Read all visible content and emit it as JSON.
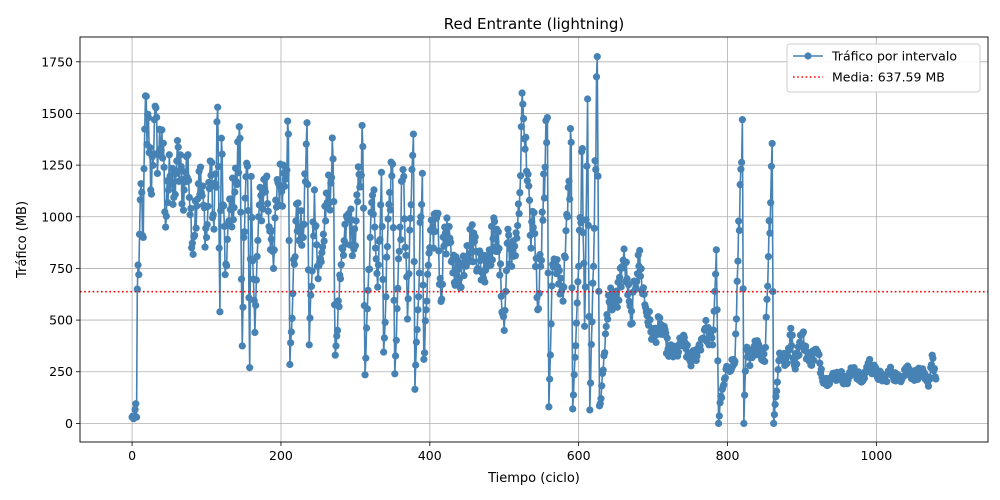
{
  "chart_data": {
    "type": "line",
    "title": "Red Entrante (lightning)",
    "xlabel": "Tiempo (ciclo)",
    "ylabel": "Tráfico (MB)",
    "xlim": [
      -70,
      1150
    ],
    "ylim": [
      -90,
      1870
    ],
    "x_ticks": [
      0,
      200,
      400,
      600,
      800,
      1000
    ],
    "y_ticks": [
      0,
      250,
      500,
      750,
      1000,
      1250,
      1500,
      1750
    ],
    "grid": true,
    "legend_position": "top-right",
    "series": [
      {
        "name": "Tráfico por intervalo",
        "color": "#4682b4",
        "marker": "circle",
        "anchors": [
          [
            0,
            30
          ],
          [
            3,
            30
          ],
          [
            5,
            95
          ],
          [
            6,
            30
          ],
          [
            7,
            650
          ],
          [
            9,
            720
          ],
          [
            10,
            915
          ],
          [
            12,
            1160
          ],
          [
            15,
            900
          ],
          [
            18,
            1585
          ],
          [
            20,
            1350
          ],
          [
            22,
            1480
          ],
          [
            25,
            1130
          ],
          [
            30,
            1470
          ],
          [
            35,
            1300
          ],
          [
            40,
            1420
          ],
          [
            45,
            950
          ],
          [
            50,
            1300
          ],
          [
            55,
            1060
          ],
          [
            60,
            1270
          ],
          [
            70,
            1130
          ],
          [
            75,
            1300
          ],
          [
            80,
            850
          ],
          [
            90,
            1220
          ],
          [
            100,
            900
          ],
          [
            105,
            1270
          ],
          [
            110,
            940
          ],
          [
            115,
            1530
          ],
          [
            118,
            540
          ],
          [
            120,
            1380
          ],
          [
            125,
            720
          ],
          [
            130,
            980
          ],
          [
            140,
            1170
          ],
          [
            145,
            1380
          ],
          [
            148,
            375
          ],
          [
            150,
            900
          ],
          [
            155,
            1245
          ],
          [
            158,
            270
          ],
          [
            160,
            1195
          ],
          [
            165,
            440
          ],
          [
            170,
            1000
          ],
          [
            180,
            1190
          ],
          [
            190,
            750
          ],
          [
            195,
            1180
          ],
          [
            200,
            1140
          ],
          [
            210,
            1400
          ],
          [
            212,
            285
          ],
          [
            220,
            980
          ],
          [
            230,
            900
          ],
          [
            235,
            1455
          ],
          [
            238,
            380
          ],
          [
            245,
            1130
          ],
          [
            250,
            700
          ],
          [
            260,
            980
          ],
          [
            270,
            1280
          ],
          [
            273,
            330
          ],
          [
            280,
            700
          ],
          [
            290,
            1000
          ],
          [
            300,
            860
          ],
          [
            305,
            1205
          ],
          [
            310,
            1340
          ],
          [
            313,
            235
          ],
          [
            320,
            900
          ],
          [
            325,
            1130
          ],
          [
            330,
            660
          ],
          [
            335,
            1215
          ],
          [
            338,
            345
          ],
          [
            345,
            1060
          ],
          [
            350,
            1255
          ],
          [
            353,
            240
          ],
          [
            360,
            950
          ],
          [
            365,
            1195
          ],
          [
            370,
            505
          ],
          [
            378,
            1400
          ],
          [
            380,
            165
          ],
          [
            390,
            1210
          ],
          [
            392,
            310
          ],
          [
            400,
            850
          ],
          [
            410,
            1010
          ],
          [
            415,
            590
          ],
          [
            420,
            950
          ],
          [
            430,
            790
          ],
          [
            440,
            700
          ],
          [
            450,
            860
          ],
          [
            460,
            880
          ],
          [
            470,
            730
          ],
          [
            480,
            840
          ],
          [
            490,
            940
          ],
          [
            500,
            450
          ],
          [
            505,
            940
          ],
          [
            510,
            760
          ],
          [
            520,
            1015
          ],
          [
            525,
            1545
          ],
          [
            530,
            1220
          ],
          [
            535,
            910
          ],
          [
            540,
            1020
          ],
          [
            545,
            550
          ],
          [
            555,
            1240
          ],
          [
            558,
            1480
          ],
          [
            560,
            80
          ],
          [
            565,
            770
          ],
          [
            570,
            725
          ],
          [
            580,
            660
          ],
          [
            590,
            1360
          ],
          [
            592,
            70
          ],
          [
            600,
            760
          ],
          [
            605,
            1330
          ],
          [
            608,
            470
          ],
          [
            612,
            1570
          ],
          [
            615,
            65
          ],
          [
            620,
            760
          ],
          [
            625,
            1775
          ],
          [
            628,
            85
          ],
          [
            630,
            120
          ],
          [
            640,
            620
          ],
          [
            650,
            570
          ],
          [
            660,
            790
          ],
          [
            665,
            700
          ],
          [
            670,
            480
          ],
          [
            680,
            815
          ],
          [
            690,
            560
          ],
          [
            700,
            420
          ],
          [
            710,
            480
          ],
          [
            720,
            360
          ],
          [
            730,
            330
          ],
          [
            740,
            400
          ],
          [
            750,
            300
          ],
          [
            760,
            350
          ],
          [
            770,
            460
          ],
          [
            780,
            380
          ],
          [
            785,
            840
          ],
          [
            788,
            0
          ],
          [
            790,
            100
          ],
          [
            800,
            270
          ],
          [
            810,
            300
          ],
          [
            820,
            1470
          ],
          [
            822,
            0
          ],
          [
            825,
            360
          ],
          [
            830,
            280
          ],
          [
            840,
            400
          ],
          [
            850,
            300
          ],
          [
            860,
            1355
          ],
          [
            862,
            0
          ],
          [
            870,
            340
          ],
          [
            880,
            290
          ],
          [
            885,
            460
          ],
          [
            890,
            280
          ],
          [
            900,
            430
          ],
          [
            910,
            300
          ],
          [
            920,
            350
          ],
          [
            930,
            200
          ],
          [
            940,
            220
          ],
          [
            950,
            240
          ],
          [
            960,
            200
          ],
          [
            970,
            270
          ],
          [
            980,
            200
          ],
          [
            990,
            290
          ],
          [
            1000,
            240
          ],
          [
            1010,
            215
          ],
          [
            1020,
            250
          ],
          [
            1030,
            210
          ],
          [
            1040,
            270
          ],
          [
            1050,
            230
          ],
          [
            1060,
            250
          ],
          [
            1070,
            180
          ],
          [
            1075,
            330
          ],
          [
            1080,
            215
          ]
        ],
        "noise": 0.12,
        "base_step": 1.0
      },
      {
        "name": "Media: 637.59 MB",
        "color": "#ff0000",
        "style": "dotted",
        "value": 637.59
      }
    ]
  }
}
